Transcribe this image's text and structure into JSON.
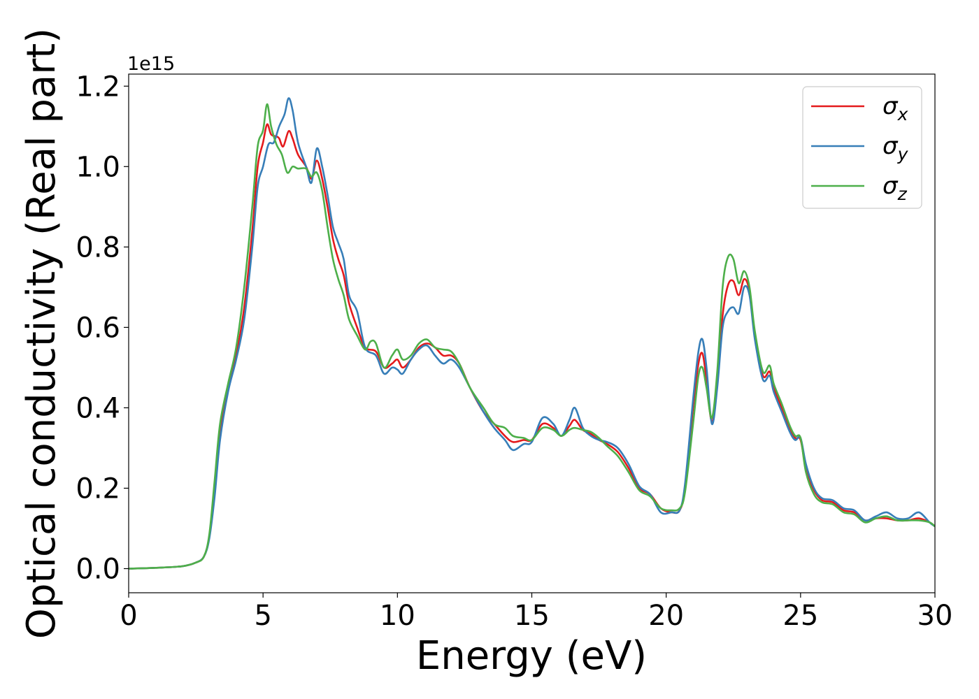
{
  "chart_data": {
    "type": "line",
    "xlabel": "Energy (eV)",
    "ylabel": "Optical conductivity (Real part)",
    "y_offset_label": "1e15",
    "xlim": [
      0,
      30
    ],
    "ylim": [
      -0.06,
      1.23
    ],
    "x_ticks": [
      0,
      5,
      10,
      15,
      20,
      25,
      30
    ],
    "x_tick_labels": [
      "0",
      "5",
      "10",
      "15",
      "20",
      "25",
      "30"
    ],
    "y_ticks": [
      0.0,
      0.2,
      0.4,
      0.6,
      0.8,
      1.0,
      1.2
    ],
    "y_tick_labels": [
      "0.0",
      "0.2",
      "0.4",
      "0.6",
      "0.8",
      "1.0",
      "1.2"
    ],
    "grid": false,
    "legend_position": "top-right",
    "series": [
      {
        "name": "σ",
        "subscript": "x",
        "color": "#e41a1c",
        "points": [
          [
            0,
            0
          ],
          [
            1,
            0.002
          ],
          [
            2,
            0.006
          ],
          [
            2.5,
            0.015
          ],
          [
            2.8,
            0.03
          ],
          [
            3.0,
            0.08
          ],
          [
            3.2,
            0.2
          ],
          [
            3.4,
            0.34
          ],
          [
            3.7,
            0.45
          ],
          [
            4.0,
            0.53
          ],
          [
            4.3,
            0.65
          ],
          [
            4.6,
            0.84
          ],
          [
            4.8,
            1.0
          ],
          [
            5.0,
            1.06
          ],
          [
            5.15,
            1.105
          ],
          [
            5.3,
            1.08
          ],
          [
            5.5,
            1.075
          ],
          [
            5.6,
            1.07
          ],
          [
            5.75,
            1.05
          ],
          [
            5.95,
            1.088
          ],
          [
            6.1,
            1.07
          ],
          [
            6.3,
            1.03
          ],
          [
            6.6,
            1.0
          ],
          [
            6.8,
            0.97
          ],
          [
            7.0,
            1.015
          ],
          [
            7.2,
            0.97
          ],
          [
            7.4,
            0.9
          ],
          [
            7.6,
            0.82
          ],
          [
            7.8,
            0.77
          ],
          [
            8.0,
            0.73
          ],
          [
            8.2,
            0.66
          ],
          [
            8.5,
            0.6
          ],
          [
            8.8,
            0.55
          ],
          [
            9.2,
            0.54
          ],
          [
            9.5,
            0.5
          ],
          [
            9.8,
            0.51
          ],
          [
            10.0,
            0.52
          ],
          [
            10.2,
            0.5
          ],
          [
            10.5,
            0.52
          ],
          [
            10.8,
            0.55
          ],
          [
            11.1,
            0.56
          ],
          [
            11.4,
            0.55
          ],
          [
            11.7,
            0.53
          ],
          [
            12.0,
            0.53
          ],
          [
            12.3,
            0.51
          ],
          [
            12.7,
            0.45
          ],
          [
            13.2,
            0.39
          ],
          [
            13.6,
            0.36
          ],
          [
            14.0,
            0.33
          ],
          [
            14.3,
            0.315
          ],
          [
            14.7,
            0.32
          ],
          [
            15.0,
            0.32
          ],
          [
            15.4,
            0.36
          ],
          [
            15.8,
            0.35
          ],
          [
            16.1,
            0.33
          ],
          [
            16.4,
            0.355
          ],
          [
            16.6,
            0.37
          ],
          [
            16.9,
            0.345
          ],
          [
            17.2,
            0.335
          ],
          [
            17.5,
            0.32
          ],
          [
            17.8,
            0.31
          ],
          [
            18.2,
            0.29
          ],
          [
            18.6,
            0.25
          ],
          [
            19.0,
            0.2
          ],
          [
            19.4,
            0.185
          ],
          [
            19.8,
            0.15
          ],
          [
            20.2,
            0.14
          ],
          [
            20.5,
            0.145
          ],
          [
            20.7,
            0.2
          ],
          [
            21.0,
            0.4
          ],
          [
            21.2,
            0.51
          ],
          [
            21.35,
            0.535
          ],
          [
            21.5,
            0.47
          ],
          [
            21.7,
            0.365
          ],
          [
            21.9,
            0.46
          ],
          [
            22.1,
            0.63
          ],
          [
            22.3,
            0.705
          ],
          [
            22.5,
            0.715
          ],
          [
            22.7,
            0.68
          ],
          [
            22.9,
            0.72
          ],
          [
            23.1,
            0.69
          ],
          [
            23.3,
            0.58
          ],
          [
            23.6,
            0.48
          ],
          [
            23.85,
            0.49
          ],
          [
            24.0,
            0.45
          ],
          [
            24.3,
            0.4
          ],
          [
            24.6,
            0.35
          ],
          [
            24.8,
            0.325
          ],
          [
            25.0,
            0.32
          ],
          [
            25.2,
            0.25
          ],
          [
            25.5,
            0.195
          ],
          [
            25.8,
            0.17
          ],
          [
            26.2,
            0.165
          ],
          [
            26.6,
            0.145
          ],
          [
            27.0,
            0.14
          ],
          [
            27.4,
            0.12
          ],
          [
            27.8,
            0.125
          ],
          [
            28.2,
            0.125
          ],
          [
            28.6,
            0.12
          ],
          [
            29.0,
            0.12
          ],
          [
            29.4,
            0.125
          ],
          [
            29.8,
            0.115
          ],
          [
            30.0,
            0.105
          ]
        ]
      },
      {
        "name": "σ",
        "subscript": "y",
        "color": "#377eb8",
        "points": [
          [
            0,
            0
          ],
          [
            1,
            0.002
          ],
          [
            2,
            0.006
          ],
          [
            2.5,
            0.015
          ],
          [
            2.8,
            0.03
          ],
          [
            3.0,
            0.075
          ],
          [
            3.2,
            0.18
          ],
          [
            3.4,
            0.32
          ],
          [
            3.7,
            0.44
          ],
          [
            4.0,
            0.52
          ],
          [
            4.3,
            0.62
          ],
          [
            4.6,
            0.8
          ],
          [
            4.8,
            0.95
          ],
          [
            5.0,
            1.0
          ],
          [
            5.2,
            1.055
          ],
          [
            5.4,
            1.06
          ],
          [
            5.6,
            1.1
          ],
          [
            5.8,
            1.13
          ],
          [
            5.95,
            1.17
          ],
          [
            6.1,
            1.14
          ],
          [
            6.3,
            1.06
          ],
          [
            6.6,
            1.0
          ],
          [
            6.8,
            0.96
          ],
          [
            7.0,
            1.045
          ],
          [
            7.2,
            1.0
          ],
          [
            7.4,
            0.93
          ],
          [
            7.6,
            0.85
          ],
          [
            7.8,
            0.81
          ],
          [
            8.0,
            0.77
          ],
          [
            8.2,
            0.68
          ],
          [
            8.5,
            0.64
          ],
          [
            8.8,
            0.55
          ],
          [
            9.2,
            0.53
          ],
          [
            9.5,
            0.485
          ],
          [
            9.8,
            0.5
          ],
          [
            10.0,
            0.495
          ],
          [
            10.2,
            0.485
          ],
          [
            10.5,
            0.52
          ],
          [
            10.8,
            0.545
          ],
          [
            11.1,
            0.555
          ],
          [
            11.4,
            0.53
          ],
          [
            11.7,
            0.51
          ],
          [
            12.0,
            0.52
          ],
          [
            12.3,
            0.5
          ],
          [
            12.7,
            0.45
          ],
          [
            13.2,
            0.39
          ],
          [
            13.6,
            0.35
          ],
          [
            14.0,
            0.32
          ],
          [
            14.3,
            0.295
          ],
          [
            14.7,
            0.31
          ],
          [
            15.0,
            0.315
          ],
          [
            15.4,
            0.375
          ],
          [
            15.8,
            0.36
          ],
          [
            16.1,
            0.33
          ],
          [
            16.4,
            0.37
          ],
          [
            16.6,
            0.4
          ],
          [
            16.9,
            0.35
          ],
          [
            17.2,
            0.33
          ],
          [
            17.5,
            0.32
          ],
          [
            17.8,
            0.315
          ],
          [
            18.2,
            0.3
          ],
          [
            18.6,
            0.26
          ],
          [
            19.0,
            0.205
          ],
          [
            19.4,
            0.185
          ],
          [
            19.8,
            0.14
          ],
          [
            20.2,
            0.14
          ],
          [
            20.5,
            0.145
          ],
          [
            20.7,
            0.21
          ],
          [
            21.0,
            0.42
          ],
          [
            21.2,
            0.54
          ],
          [
            21.35,
            0.57
          ],
          [
            21.5,
            0.5
          ],
          [
            21.7,
            0.36
          ],
          [
            21.9,
            0.45
          ],
          [
            22.1,
            0.6
          ],
          [
            22.3,
            0.64
          ],
          [
            22.5,
            0.65
          ],
          [
            22.7,
            0.635
          ],
          [
            22.9,
            0.7
          ],
          [
            23.1,
            0.68
          ],
          [
            23.3,
            0.57
          ],
          [
            23.6,
            0.47
          ],
          [
            23.85,
            0.48
          ],
          [
            24.0,
            0.44
          ],
          [
            24.3,
            0.39
          ],
          [
            24.6,
            0.34
          ],
          [
            24.8,
            0.32
          ],
          [
            25.0,
            0.325
          ],
          [
            25.2,
            0.26
          ],
          [
            25.5,
            0.2
          ],
          [
            25.8,
            0.175
          ],
          [
            26.2,
            0.17
          ],
          [
            26.6,
            0.15
          ],
          [
            27.0,
            0.145
          ],
          [
            27.4,
            0.12
          ],
          [
            27.8,
            0.13
          ],
          [
            28.2,
            0.14
          ],
          [
            28.6,
            0.125
          ],
          [
            29.0,
            0.125
          ],
          [
            29.4,
            0.14
          ],
          [
            29.8,
            0.115
          ],
          [
            30.0,
            0.105
          ]
        ]
      },
      {
        "name": "σ",
        "subscript": "z",
        "color": "#4daf4a",
        "points": [
          [
            0,
            0
          ],
          [
            1,
            0.002
          ],
          [
            2,
            0.006
          ],
          [
            2.5,
            0.015
          ],
          [
            2.8,
            0.03
          ],
          [
            3.0,
            0.085
          ],
          [
            3.2,
            0.22
          ],
          [
            3.4,
            0.36
          ],
          [
            3.7,
            0.46
          ],
          [
            4.0,
            0.55
          ],
          [
            4.3,
            0.7
          ],
          [
            4.6,
            0.9
          ],
          [
            4.8,
            1.05
          ],
          [
            5.0,
            1.09
          ],
          [
            5.15,
            1.155
          ],
          [
            5.3,
            1.1
          ],
          [
            5.5,
            1.055
          ],
          [
            5.7,
            1.03
          ],
          [
            5.9,
            0.985
          ],
          [
            6.1,
            1.0
          ],
          [
            6.3,
            0.995
          ],
          [
            6.6,
            0.995
          ],
          [
            6.8,
            0.975
          ],
          [
            7.0,
            0.985
          ],
          [
            7.2,
            0.94
          ],
          [
            7.4,
            0.85
          ],
          [
            7.6,
            0.77
          ],
          [
            7.8,
            0.72
          ],
          [
            8.0,
            0.68
          ],
          [
            8.2,
            0.62
          ],
          [
            8.5,
            0.58
          ],
          [
            8.8,
            0.545
          ],
          [
            9.0,
            0.565
          ],
          [
            9.2,
            0.56
          ],
          [
            9.5,
            0.5
          ],
          [
            9.8,
            0.53
          ],
          [
            10.0,
            0.545
          ],
          [
            10.2,
            0.52
          ],
          [
            10.5,
            0.53
          ],
          [
            10.8,
            0.56
          ],
          [
            11.1,
            0.57
          ],
          [
            11.4,
            0.55
          ],
          [
            11.7,
            0.545
          ],
          [
            12.0,
            0.54
          ],
          [
            12.3,
            0.51
          ],
          [
            12.7,
            0.45
          ],
          [
            13.2,
            0.4
          ],
          [
            13.6,
            0.36
          ],
          [
            14.0,
            0.35
          ],
          [
            14.3,
            0.33
          ],
          [
            14.7,
            0.325
          ],
          [
            15.0,
            0.32
          ],
          [
            15.4,
            0.35
          ],
          [
            15.8,
            0.345
          ],
          [
            16.1,
            0.33
          ],
          [
            16.4,
            0.345
          ],
          [
            16.6,
            0.35
          ],
          [
            16.9,
            0.345
          ],
          [
            17.2,
            0.34
          ],
          [
            17.5,
            0.325
          ],
          [
            17.8,
            0.305
          ],
          [
            18.2,
            0.28
          ],
          [
            18.6,
            0.24
          ],
          [
            19.0,
            0.195
          ],
          [
            19.4,
            0.18
          ],
          [
            19.8,
            0.15
          ],
          [
            20.2,
            0.145
          ],
          [
            20.5,
            0.15
          ],
          [
            20.7,
            0.19
          ],
          [
            21.0,
            0.36
          ],
          [
            21.2,
            0.48
          ],
          [
            21.35,
            0.5
          ],
          [
            21.5,
            0.45
          ],
          [
            21.7,
            0.375
          ],
          [
            21.9,
            0.49
          ],
          [
            22.1,
            0.7
          ],
          [
            22.3,
            0.775
          ],
          [
            22.5,
            0.77
          ],
          [
            22.7,
            0.71
          ],
          [
            22.9,
            0.74
          ],
          [
            23.1,
            0.7
          ],
          [
            23.3,
            0.59
          ],
          [
            23.6,
            0.49
          ],
          [
            23.85,
            0.505
          ],
          [
            24.0,
            0.46
          ],
          [
            24.3,
            0.41
          ],
          [
            24.6,
            0.355
          ],
          [
            24.8,
            0.33
          ],
          [
            25.0,
            0.325
          ],
          [
            25.2,
            0.24
          ],
          [
            25.5,
            0.185
          ],
          [
            25.8,
            0.165
          ],
          [
            26.2,
            0.16
          ],
          [
            26.6,
            0.14
          ],
          [
            27.0,
            0.135
          ],
          [
            27.4,
            0.115
          ],
          [
            27.8,
            0.125
          ],
          [
            28.2,
            0.13
          ],
          [
            28.6,
            0.12
          ],
          [
            29.0,
            0.12
          ],
          [
            29.4,
            0.12
          ],
          [
            29.8,
            0.115
          ],
          [
            30.0,
            0.105
          ]
        ]
      }
    ]
  }
}
